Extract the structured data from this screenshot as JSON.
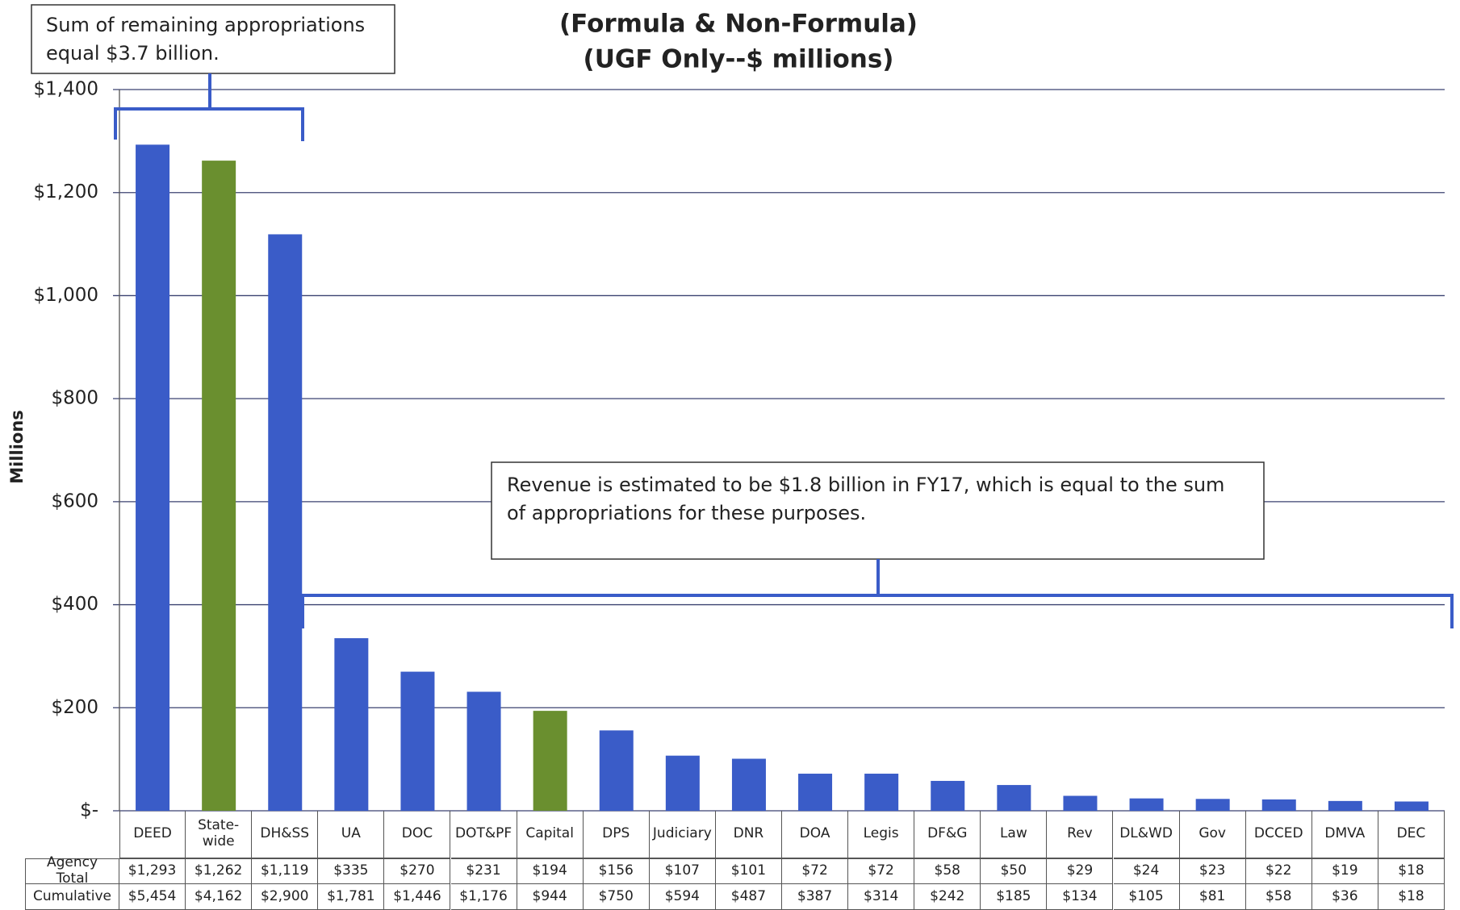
{
  "chart_data": {
    "type": "bar",
    "title_lines": [
      "(Formula & Non-Formula)",
      "(UGF Only--$ millions)"
    ],
    "ylabel": "Millions",
    "categories": [
      "DEED",
      "State-wide",
      "DH&SS",
      "UA",
      "DOC",
      "DOT&PF",
      "Capital",
      "DPS",
      "Judiciary",
      "DNR",
      "DOA",
      "Legis",
      "DF&G",
      "Law",
      "Rev",
      "DL&WD",
      "Gov",
      "DCCED",
      "DMVA",
      "DEC"
    ],
    "series": [
      {
        "name": "Agency Total",
        "values": [
          1293,
          1262,
          1119,
          335,
          270,
          231,
          194,
          156,
          107,
          101,
          72,
          72,
          58,
          50,
          29,
          24,
          23,
          22,
          19,
          18
        ],
        "value_labels": [
          "$1,293",
          "$1,262",
          "$1,119",
          "$335",
          "$270",
          "$231",
          "$194",
          "$156",
          "$107",
          "$101",
          "$72",
          "$72",
          "$58",
          "$50",
          "$29",
          "$24",
          "$23",
          "$22",
          "$19",
          "$18"
        ],
        "colors": [
          "#3a5cc8",
          "#6a8f2f",
          "#3a5cc8",
          "#3a5cc8",
          "#3a5cc8",
          "#3a5cc8",
          "#6a8f2f",
          "#3a5cc8",
          "#3a5cc8",
          "#3a5cc8",
          "#3a5cc8",
          "#3a5cc8",
          "#3a5cc8",
          "#3a5cc8",
          "#3a5cc8",
          "#3a5cc8",
          "#3a5cc8",
          "#3a5cc8",
          "#3a5cc8",
          "#3a5cc8"
        ]
      }
    ],
    "cumulative": {
      "name": "Cumulative",
      "values": [
        5454,
        4162,
        2900,
        1781,
        1446,
        1176,
        944,
        750,
        594,
        487,
        387,
        314,
        242,
        185,
        134,
        105,
        81,
        58,
        36,
        18
      ],
      "value_labels": [
        "$5,454",
        "$4,162",
        "$2,900",
        "$1,781",
        "$1,446",
        "$1,176",
        "$944",
        "$750",
        "$594",
        "$487",
        "$387",
        "$314",
        "$242",
        "$185",
        "$134",
        "$105",
        "$81",
        "$58",
        "$36",
        "$18"
      ]
    },
    "ylim": [
      0,
      1400
    ],
    "yticks": [
      {
        "value": 0,
        "label": "$-"
      },
      {
        "value": 200,
        "label": "$200"
      },
      {
        "value": 400,
        "label": "$400"
      },
      {
        "value": 600,
        "label": "$600"
      },
      {
        "value": 800,
        "label": "$800"
      },
      {
        "value": 1000,
        "label": "$1,000"
      },
      {
        "value": 1200,
        "label": "$1,200"
      },
      {
        "value": 1400,
        "label": "$1,400"
      }
    ],
    "grid": true,
    "annotations": [
      "Sum of remaining appropriations equal $3.7 billion.",
      "Revenue is estimated to be $1.8 billion in FY17, which is equal to the sum of appropriations for these purposes."
    ]
  }
}
